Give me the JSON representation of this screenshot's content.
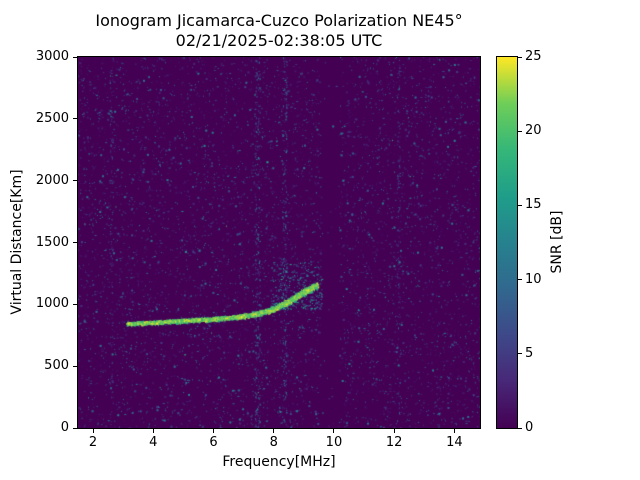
{
  "chart_data": {
    "type": "heatmap",
    "title": "Ionogram Jicamarca-Cuzco Polarization NE45°",
    "subtitle": "02/21/2025-02:38:05 UTC",
    "xlabel": "Frequency[MHz]",
    "ylabel": "Virtual Distance[Km]",
    "xlim": [
      1.5,
      14.85
    ],
    "ylim": [
      0,
      3000
    ],
    "x_ticks": [
      2,
      4,
      6,
      8,
      10,
      12,
      14
    ],
    "y_ticks": [
      0,
      500,
      1000,
      1500,
      2000,
      2500,
      3000
    ],
    "grid": false,
    "colorbar": {
      "label": "SNR [dB]",
      "ticks": [
        0,
        5,
        10,
        15,
        20,
        25
      ],
      "range": [
        0,
        25
      ],
      "colormap": "viridis",
      "viridis_stops": [
        [
          0.0,
          "#440154"
        ],
        [
          0.125,
          "#482878"
        ],
        [
          0.25,
          "#3e4989"
        ],
        [
          0.375,
          "#31688e"
        ],
        [
          0.5,
          "#26828e"
        ],
        [
          0.625,
          "#1f9e89"
        ],
        [
          0.75,
          "#35b779"
        ],
        [
          0.875,
          "#6ece58"
        ],
        [
          1.0,
          "#fde725"
        ]
      ]
    },
    "background_snr_db": 0,
    "noise": {
      "seed": 7,
      "count": 9500,
      "max_db": 12,
      "bright_fraction": 0.05
    },
    "quiet_bands_mhz": [
      [
        9.55,
        10.15
      ]
    ],
    "rfi_columns": [
      {
        "x": 7.45,
        "width": 0.18,
        "count": 260,
        "min_db": 3,
        "max_db": 14
      },
      {
        "x": 8.35,
        "width": 0.15,
        "count": 200,
        "min_db": 3,
        "max_db": 14
      },
      {
        "x": 2.6,
        "width": 0.12,
        "count": 90,
        "min_db": 2,
        "max_db": 10
      },
      {
        "x": 12.15,
        "width": 0.12,
        "count": 90,
        "min_db": 2,
        "max_db": 10
      }
    ],
    "echo_trace": {
      "x": [
        3.1,
        4.0,
        5.0,
        6.0,
        6.8,
        7.4,
        8.0,
        8.5,
        8.9,
        9.2,
        9.45
      ],
      "y_km": [
        845,
        855,
        870,
        885,
        900,
        925,
        965,
        1030,
        1090,
        1130,
        1160
      ],
      "thickness_km": [
        35,
        38,
        40,
        42,
        45,
        50,
        60,
        70,
        75,
        75,
        70
      ],
      "count": 3200,
      "min_db": 10,
      "max_db": 25
    },
    "scatter_halo": {
      "x_range": [
        7.9,
        9.6
      ],
      "y_range": [
        960,
        1360
      ],
      "count": 380,
      "min_db": 5,
      "max_db": 18
    }
  }
}
